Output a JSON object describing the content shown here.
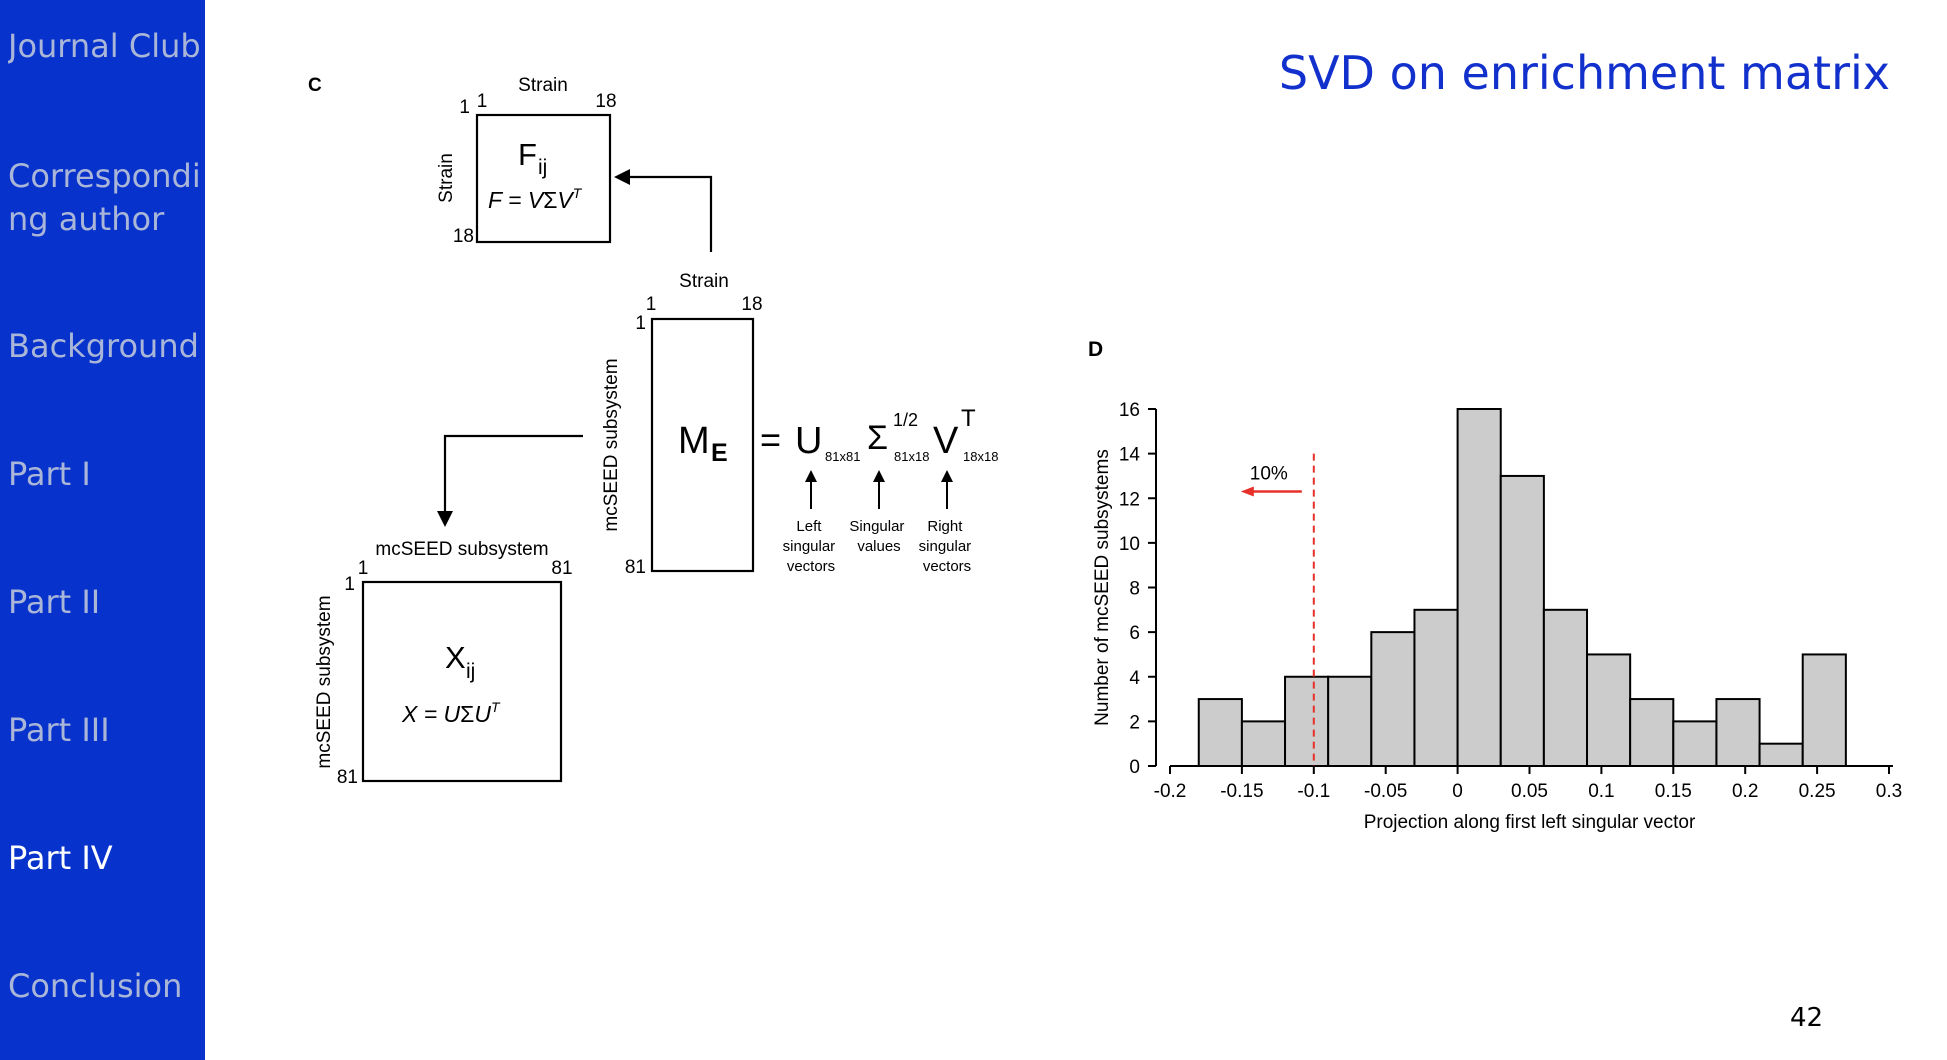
{
  "sidebar": {
    "items": [
      {
        "label": "Journal Club",
        "active": false
      },
      {
        "label": "Correspondi\nng author",
        "active": false
      },
      {
        "label": "Background",
        "active": false
      },
      {
        "label": "Part I",
        "active": false
      },
      {
        "label": "Part II",
        "active": false
      },
      {
        "label": "Part III",
        "active": false
      },
      {
        "label": "Part IV",
        "active": true
      },
      {
        "label": "Conclusion",
        "active": false
      }
    ]
  },
  "slide": {
    "title": "SVD on enrichment matrix",
    "page_number": "42"
  },
  "panel_c": {
    "letter": "C",
    "strain_label": "Strain",
    "subsystem_label": "mcSEED subsystem",
    "n1": "1",
    "n18": "18",
    "n81": "81",
    "F_symbol": "F",
    "F_sub": "ij",
    "F_eq_pre": "F = V",
    "sigma": "Σ",
    "V_letter": "V",
    "T": "T",
    "X_symbol": "X",
    "X_sub": "ij",
    "X_eq_pre": "X = U",
    "U_letter": "U",
    "M_symbol": "M",
    "M_sub": "E",
    "equals": "=",
    "sub_81x81": "81x81",
    "sup_half": "1/2",
    "sub_81x18": "81x18",
    "sub_18x18": "18x18",
    "left_vectors": [
      "Left",
      "singular",
      "vectors"
    ],
    "singular_values": [
      "Singular",
      "values"
    ],
    "right_vectors": [
      "Right",
      "singular",
      "vectors"
    ]
  },
  "chart_data": {
    "type": "bar",
    "panel_letter": "D",
    "xlabel": "Projection along first left singular vector",
    "ylabel": "Number of mcSEED subsystems",
    "xlim": [
      -0.2,
      0.3
    ],
    "ylim": [
      0,
      16
    ],
    "xticks": [
      "-0.2",
      "-0.15",
      "-0.1",
      "-0.05",
      "0",
      "0.05",
      "0.1",
      "0.15",
      "0.2",
      "0.25",
      "0.3"
    ],
    "yticks": [
      "0",
      "2",
      "4",
      "6",
      "8",
      "10",
      "12",
      "14",
      "16"
    ],
    "bins": [
      {
        "x0": -0.18,
        "x1": -0.15,
        "count": 3
      },
      {
        "x0": -0.15,
        "x1": -0.12,
        "count": 2
      },
      {
        "x0": -0.12,
        "x1": -0.09,
        "count": 4
      },
      {
        "x0": -0.09,
        "x1": -0.06,
        "count": 4
      },
      {
        "x0": -0.06,
        "x1": -0.03,
        "count": 6
      },
      {
        "x0": -0.03,
        "x1": 0.0,
        "count": 7
      },
      {
        "x0": 0.0,
        "x1": 0.03,
        "count": 16
      },
      {
        "x0": 0.03,
        "x1": 0.06,
        "count": 13
      },
      {
        "x0": 0.06,
        "x1": 0.09,
        "count": 7
      },
      {
        "x0": 0.09,
        "x1": 0.12,
        "count": 5
      },
      {
        "x0": 0.12,
        "x1": 0.15,
        "count": 3
      },
      {
        "x0": 0.15,
        "x1": 0.18,
        "count": 2
      },
      {
        "x0": 0.18,
        "x1": 0.21,
        "count": 3
      },
      {
        "x0": 0.21,
        "x1": 0.24,
        "count": 1
      },
      {
        "x0": 0.24,
        "x1": 0.27,
        "count": 5
      }
    ],
    "threshold": {
      "x": -0.1,
      "label": "10%",
      "color": "#E8302A"
    },
    "bar_color": "#CCCCCC",
    "grid": false
  }
}
